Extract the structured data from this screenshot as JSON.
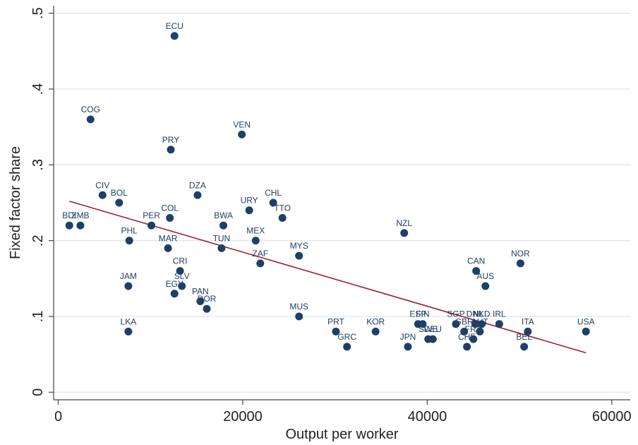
{
  "chart_data": {
    "type": "scatter",
    "title": "",
    "xlabel": "Output  per worker",
    "ylabel": "Fixed factor share",
    "xlim": [
      -500,
      62000
    ],
    "ylim": [
      -0.01,
      0.51
    ],
    "xticks": [
      0,
      20000,
      40000,
      60000
    ],
    "xtick_labels": [
      "0",
      "20000",
      "40000",
      "60000"
    ],
    "yticks": [
      0,
      0.1,
      0.2,
      0.3,
      0.4,
      0.5
    ],
    "ytick_labels": [
      "0",
      ".1",
      ".2",
      ".3",
      ".4",
      ".5"
    ],
    "grid": "horizontal",
    "legend": "none",
    "colors": {
      "marker": "#1f3f66",
      "fit_line": "#a0202a",
      "grid": "#dde4ea",
      "axis": "#444444"
    },
    "points": [
      {
        "label": "BDI",
        "x": 1200,
        "y": 0.22
      },
      {
        "label": "ZMB",
        "x": 2400,
        "y": 0.22
      },
      {
        "label": "COG",
        "x": 3500,
        "y": 0.36
      },
      {
        "label": "CIV",
        "x": 4800,
        "y": 0.26
      },
      {
        "label": "BOL",
        "x": 6600,
        "y": 0.25
      },
      {
        "label": "PHL",
        "x": 7700,
        "y": 0.2
      },
      {
        "label": "JAM",
        "x": 7600,
        "y": 0.14
      },
      {
        "label": "LKA",
        "x": 7600,
        "y": 0.08
      },
      {
        "label": "PER",
        "x": 10100,
        "y": 0.22
      },
      {
        "label": "COL",
        "x": 12100,
        "y": 0.23
      },
      {
        "label": "PRY",
        "x": 12200,
        "y": 0.32
      },
      {
        "label": "ECU",
        "x": 12600,
        "y": 0.47
      },
      {
        "label": "MAR",
        "x": 11900,
        "y": 0.19
      },
      {
        "label": "CRI",
        "x": 13200,
        "y": 0.16
      },
      {
        "label": "SLV",
        "x": 13400,
        "y": 0.14
      },
      {
        "label": "EGY",
        "x": 12600,
        "y": 0.13
      },
      {
        "label": "PAN",
        "x": 15400,
        "y": 0.12
      },
      {
        "label": "DOR",
        "x": 16100,
        "y": 0.11
      },
      {
        "label": "DZA",
        "x": 15100,
        "y": 0.26
      },
      {
        "label": "BWA",
        "x": 17900,
        "y": 0.22
      },
      {
        "label": "TUN",
        "x": 17700,
        "y": 0.19
      },
      {
        "label": "VEN",
        "x": 19900,
        "y": 0.34
      },
      {
        "label": "URY",
        "x": 20700,
        "y": 0.24
      },
      {
        "label": "MEX",
        "x": 21400,
        "y": 0.2
      },
      {
        "label": "ZAF",
        "x": 21900,
        "y": 0.17
      },
      {
        "label": "CHL",
        "x": 23300,
        "y": 0.25
      },
      {
        "label": "TTO",
        "x": 24300,
        "y": 0.23
      },
      {
        "label": "MYS",
        "x": 26100,
        "y": 0.18
      },
      {
        "label": "MUS",
        "x": 26100,
        "y": 0.1
      },
      {
        "label": "PRT",
        "x": 30100,
        "y": 0.08
      },
      {
        "label": "GRC",
        "x": 31300,
        "y": 0.06
      },
      {
        "label": "KOR",
        "x": 34400,
        "y": 0.08
      },
      {
        "label": "NZL",
        "x": 37500,
        "y": 0.21
      },
      {
        "label": "JPN",
        "x": 37900,
        "y": 0.06
      },
      {
        "label": "ESP",
        "x": 39000,
        "y": 0.09
      },
      {
        "label": "FIN",
        "x": 39500,
        "y": 0.09
      },
      {
        "label": "SWE",
        "x": 40100,
        "y": 0.07
      },
      {
        "label": "DEU",
        "x": 40600,
        "y": 0.07
      },
      {
        "label": "SGP",
        "x": 43100,
        "y": 0.09
      },
      {
        "label": "GBR",
        "x": 44000,
        "y": 0.08
      },
      {
        "label": "CHE",
        "x": 44300,
        "y": 0.06
      },
      {
        "label": "FRA",
        "x": 45000,
        "y": 0.07
      },
      {
        "label": "DNK",
        "x": 45200,
        "y": 0.09
      },
      {
        "label": "NLD",
        "x": 45900,
        "y": 0.09
      },
      {
        "label": "AUT",
        "x": 45700,
        "y": 0.08
      },
      {
        "label": "CAN",
        "x": 45300,
        "y": 0.16
      },
      {
        "label": "AUS",
        "x": 46300,
        "y": 0.14
      },
      {
        "label": "IRL",
        "x": 47800,
        "y": 0.09
      },
      {
        "label": "NOR",
        "x": 50100,
        "y": 0.17
      },
      {
        "label": "BEL",
        "x": 50500,
        "y": 0.06
      },
      {
        "label": "ITA",
        "x": 50900,
        "y": 0.08
      },
      {
        "label": "USA",
        "x": 57200,
        "y": 0.08
      }
    ],
    "fit_line": {
      "x": [
        1200,
        57200
      ],
      "y": [
        0.252,
        0.052
      ]
    }
  }
}
